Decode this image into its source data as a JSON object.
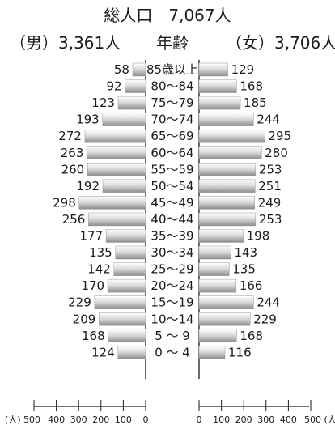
{
  "chart_data": {
    "type": "bar",
    "title": "総人口　7,067人",
    "header_male": "（男）3,361人",
    "header_age": "年齢",
    "header_female": "（女）3,706人",
    "categories": [
      "85歳以上",
      "80～84",
      "75～79",
      "70～74",
      "65～69",
      "60～64",
      "55～59",
      "50～54",
      "45～49",
      "40～44",
      "35～39",
      "30～34",
      "25～29",
      "20～24",
      "15～19",
      "10～14",
      "5 ～ 9",
      "0 ～ 4"
    ],
    "series": [
      {
        "name": "男",
        "values": [
          58,
          92,
          123,
          193,
          272,
          263,
          260,
          192,
          298,
          256,
          177,
          135,
          142,
          170,
          229,
          209,
          168,
          124
        ]
      },
      {
        "name": "女",
        "values": [
          129,
          168,
          185,
          244,
          295,
          280,
          253,
          251,
          249,
          253,
          198,
          143,
          135,
          166,
          244,
          229,
          168,
          116
        ]
      }
    ],
    "xlim": [
      0,
      500
    ],
    "left_ticks": [
      "(人) 500",
      "400",
      "300",
      "200",
      "100",
      "0"
    ],
    "right_ticks": [
      "0",
      "100",
      "200",
      "300",
      "400",
      "500 (人)"
    ],
    "tick_values": [
      500,
      400,
      300,
      200,
      100,
      0
    ],
    "grid": false,
    "bar_fill_top": "#ffffff",
    "bar_fill_mid": "#dcdcdc",
    "bar_fill_bottom": "#8c8c8c",
    "line_color": "#1a1a1a"
  }
}
